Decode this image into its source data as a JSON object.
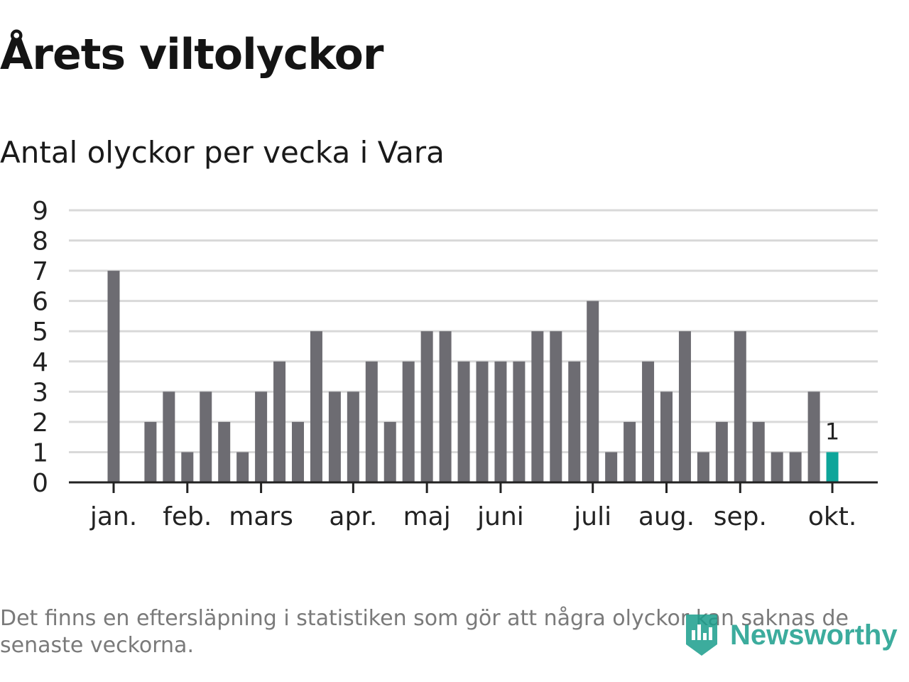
{
  "title": "Årets viltolyckor",
  "subtitle": "Antal olyckor per vecka i Vara",
  "footnote": "Det finns en eftersläpning i statistiken som gör att några olyckor kan saknas de senaste veckorna.",
  "logo": {
    "text": "Newsworthy",
    "icon": "newsworthy-logo-icon"
  },
  "colors": {
    "bar": "#6d6c72",
    "highlight": "#0ea59a",
    "grid": "#d9d9d9",
    "axis": "#222222"
  },
  "chart_data": {
    "type": "bar",
    "title": "Antal olyckor per vecka i Vara",
    "xlabel": "",
    "ylabel": "",
    "ylim": [
      0,
      9
    ],
    "yticks": [
      0,
      1,
      2,
      3,
      4,
      5,
      6,
      7,
      8,
      9
    ],
    "grid": true,
    "month_ticks": [
      {
        "label": "jan.",
        "week": 1
      },
      {
        "label": "feb.",
        "week": 5
      },
      {
        "label": "mars",
        "week": 9
      },
      {
        "label": "apr.",
        "week": 14
      },
      {
        "label": "maj",
        "week": 18
      },
      {
        "label": "juni",
        "week": 22
      },
      {
        "label": "juli",
        "week": 27
      },
      {
        "label": "aug.",
        "week": 31
      },
      {
        "label": "sep.",
        "week": 35
      },
      {
        "label": "okt.",
        "week": 40
      }
    ],
    "weeks": [
      1,
      2,
      3,
      4,
      5,
      6,
      7,
      8,
      9,
      10,
      11,
      12,
      13,
      14,
      15,
      16,
      17,
      18,
      19,
      20,
      21,
      22,
      23,
      24,
      25,
      26,
      27,
      28,
      29,
      30,
      31,
      32,
      33,
      34,
      35,
      36,
      37,
      38,
      39,
      40
    ],
    "values": [
      7,
      0,
      2,
      3,
      1,
      3,
      2,
      1,
      3,
      4,
      2,
      5,
      3,
      3,
      4,
      2,
      4,
      5,
      5,
      4,
      4,
      4,
      4,
      5,
      5,
      4,
      6,
      1,
      2,
      4,
      3,
      5,
      1,
      2,
      5,
      2,
      1,
      1,
      3,
      1
    ],
    "highlight_index": 39,
    "highlight_label": "1"
  }
}
